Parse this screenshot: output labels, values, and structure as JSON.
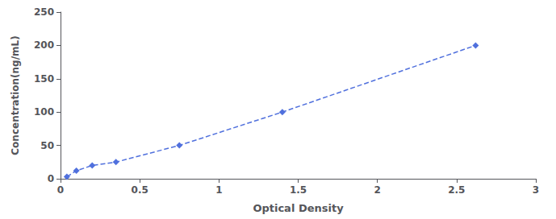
{
  "chart_data": {
    "type": "line",
    "x": [
      0.04,
      0.1,
      0.2,
      0.35,
      0.75,
      1.4,
      2.62
    ],
    "values": [
      3,
      12,
      20,
      25,
      50,
      100,
      200
    ],
    "xlabel": "Optical Density",
    "ylabel": "Concentration(ng/mL)",
    "xlim": [
      0,
      3
    ],
    "ylim": [
      0,
      250
    ],
    "xticks": [
      0,
      0.5,
      1,
      1.5,
      2,
      2.5,
      3
    ],
    "yticks": [
      0,
      50,
      100,
      150,
      200,
      250
    ],
    "grid": false,
    "marker": "diamond",
    "line_style": "dashed"
  }
}
